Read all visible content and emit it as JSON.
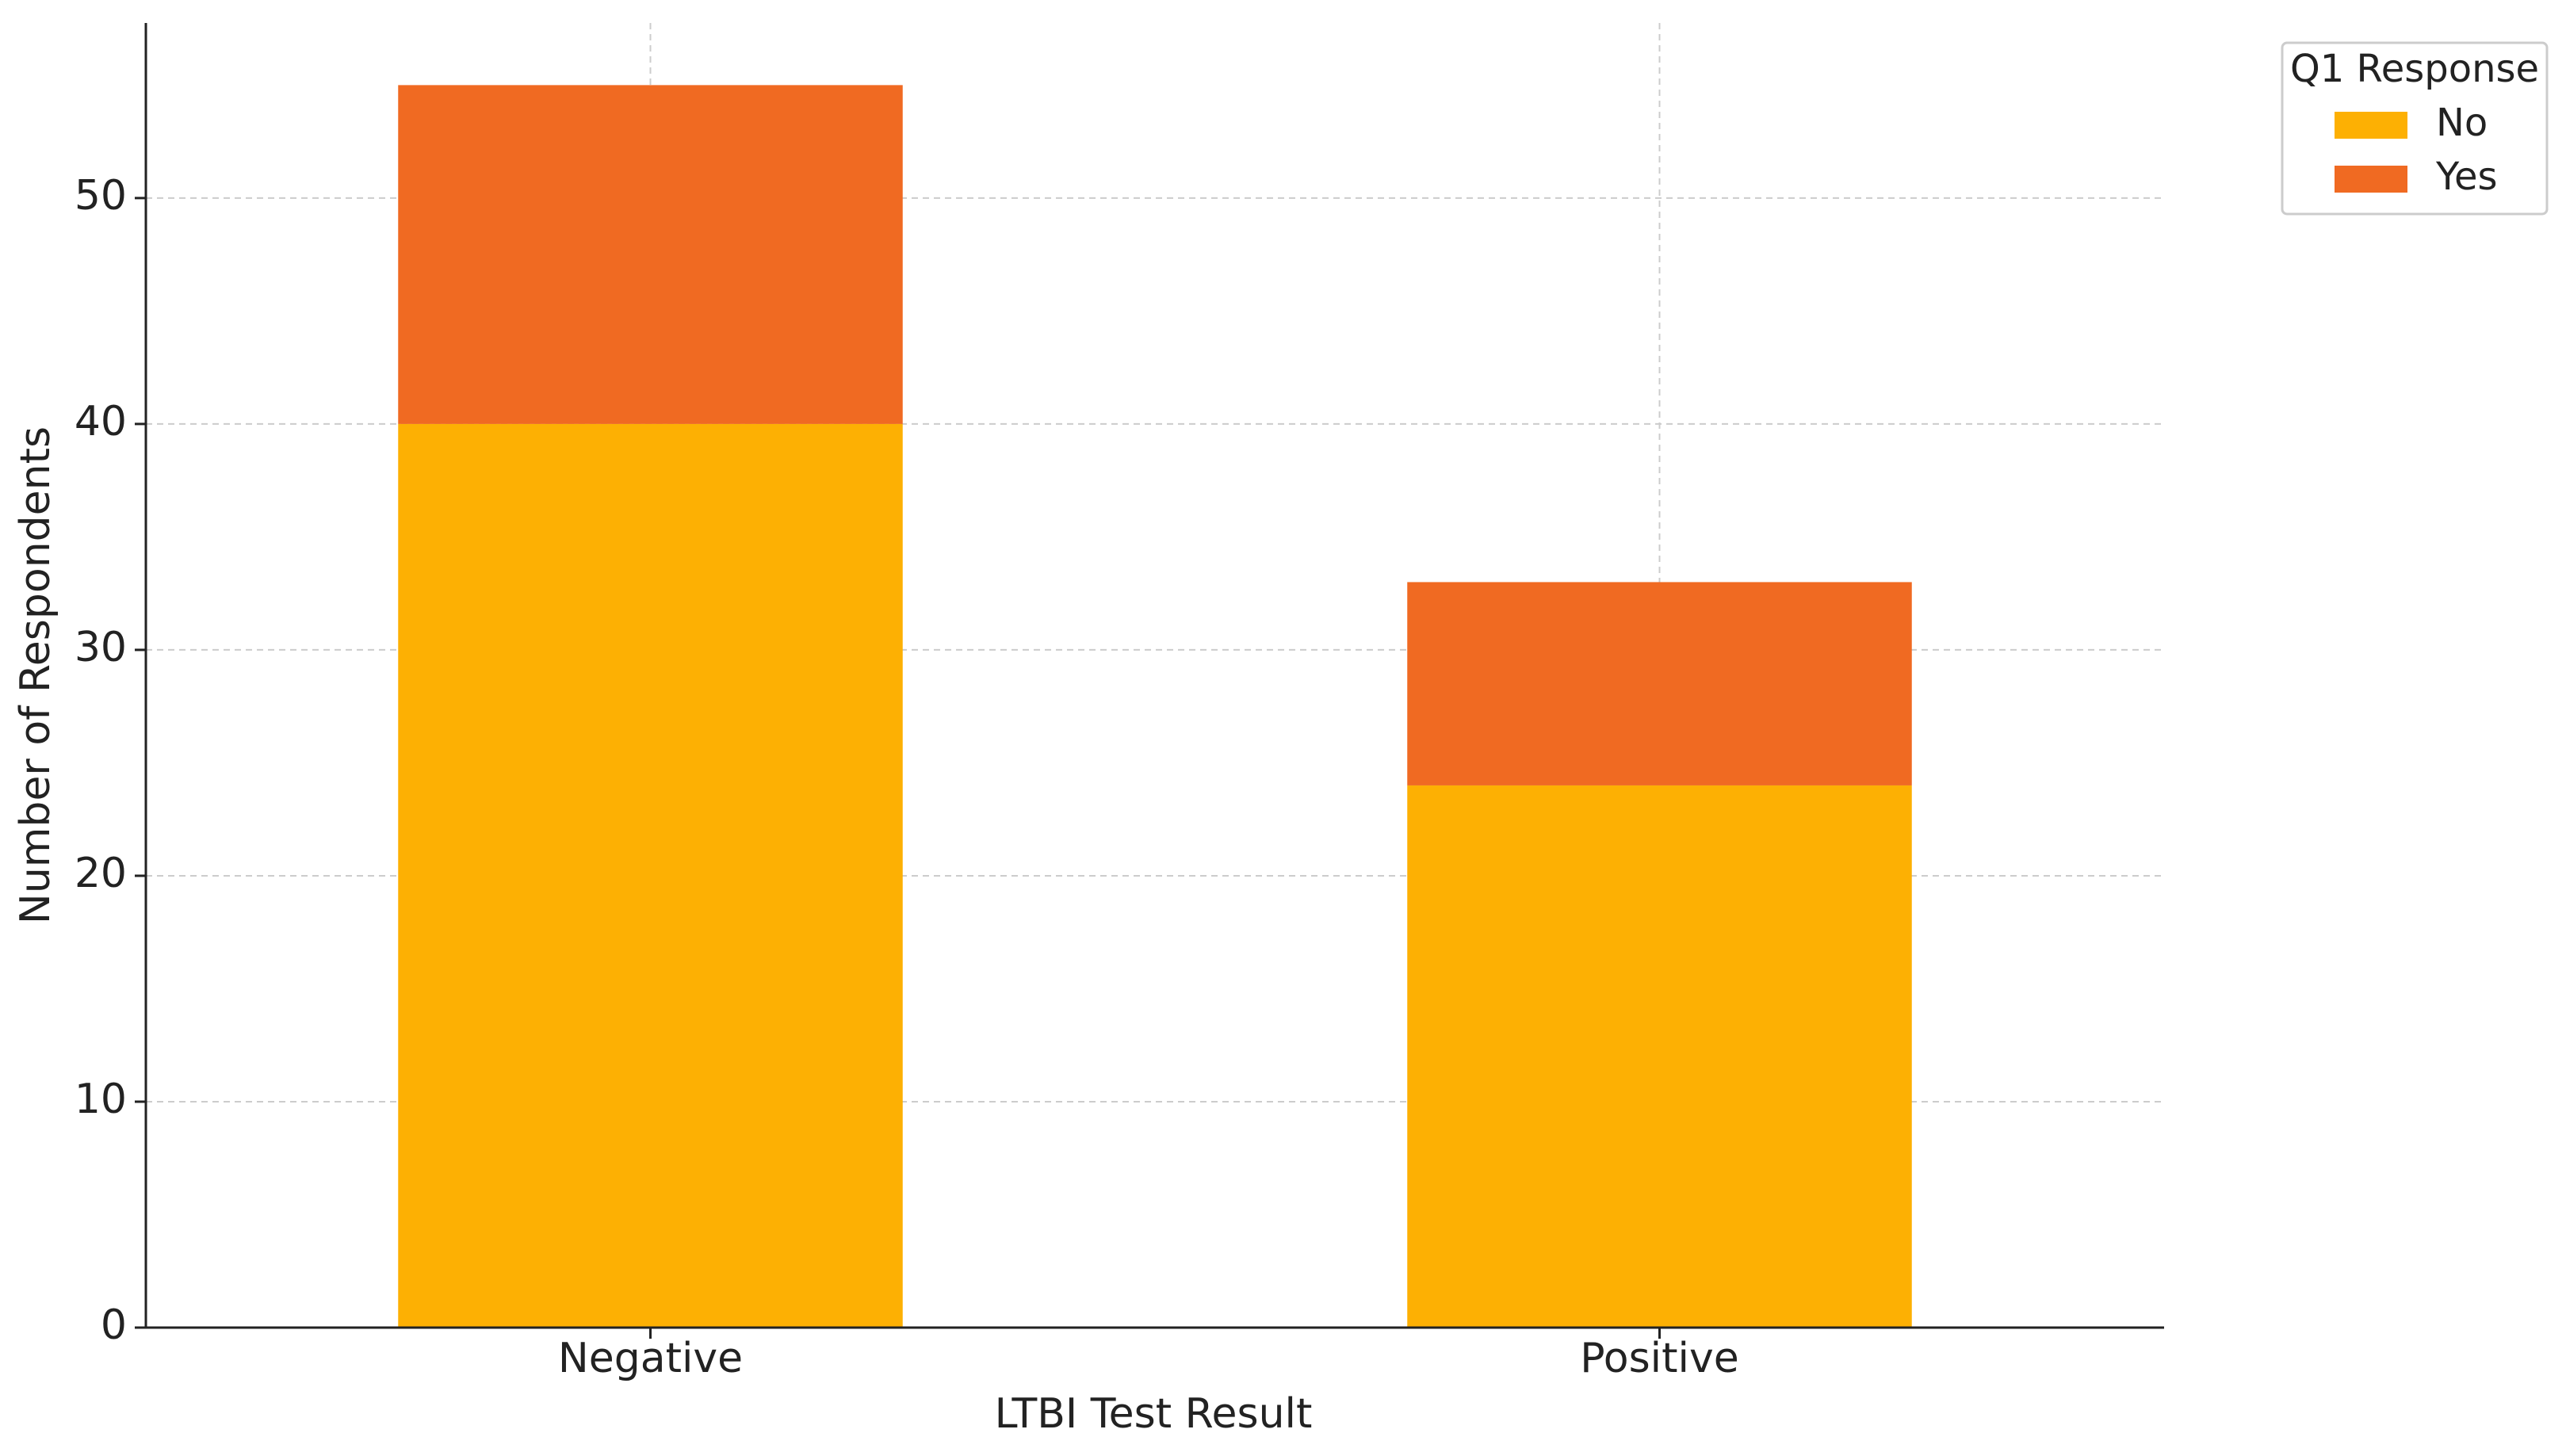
{
  "chart_data": {
    "type": "stacked-bar",
    "x_label": "LTBI Test Result",
    "y_label": "Number of Respondents",
    "categories": [
      "Negative",
      "Positive"
    ],
    "series": [
      {
        "name": "No",
        "color": "#fdb003",
        "values": [
          40,
          24
        ]
      },
      {
        "name": "Yes",
        "color": "#f06a22",
        "values": [
          15,
          9
        ]
      }
    ],
    "ylim": [
      0,
      57.75
    ],
    "yticks": [
      0,
      10,
      20,
      30,
      40,
      50
    ],
    "grid": true,
    "legend_title": "Q1 Response",
    "legend_position": "outside-upper-right"
  }
}
